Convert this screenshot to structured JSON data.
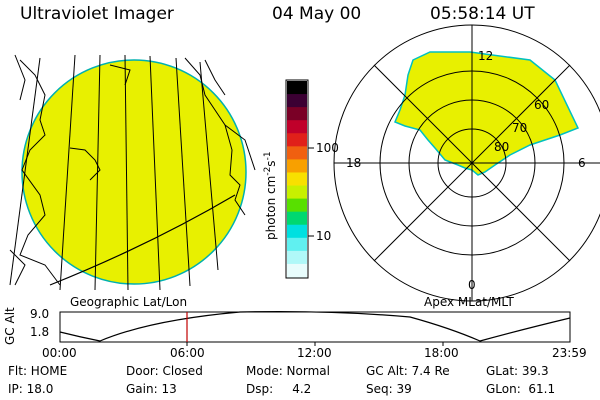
{
  "header": {
    "instrument": "Ultraviolet Imager",
    "date": "04 May 00",
    "time": "05:58:14 UT"
  },
  "colorbar": {
    "unit_label": "photon cm",
    "unit_sup1": "-2",
    "unit_mid": "s",
    "unit_sup2": "-1",
    "tick_100": "100",
    "tick_10": "10",
    "colors": [
      "#000000",
      "#3b0033",
      "#7a0026",
      "#c0002a",
      "#e0201a",
      "#f06010",
      "#f8a000",
      "#f8e000",
      "#c8f000",
      "#58e000",
      "#00d870",
      "#00e0e0",
      "#60f0f0",
      "#b0f8f8",
      "#e8fcfc"
    ]
  },
  "geo_panel": {
    "label": "Geographic Lat/Lon",
    "fill": "#e8f000"
  },
  "polar_panel": {
    "label": "Apex MLat/MLT",
    "mlat_labels": [
      "60",
      "70",
      "80"
    ],
    "mlt_labels": {
      "top": "12",
      "left": "18",
      "right": "6",
      "bottom": "0"
    }
  },
  "altitude_plot": {
    "ylabel": "GC Alt",
    "y_ticks": [
      "9.0",
      "1.8"
    ],
    "x_ticks": [
      "00:00",
      "06:00",
      "12:00",
      "18:00",
      "23:59"
    ],
    "marker_color": "#c00000"
  },
  "info": {
    "flt": "Flt: HOME",
    "door": "Door: Closed",
    "mode": "Mode: Normal",
    "gc_alt": "GC Alt: 7.4 Re",
    "glat": "GLat:  39.3",
    "ip": "IP: 18.0",
    "gain": "Gain: 13",
    "dsp": "Dsp:     4.2",
    "seq": "Seq: 39",
    "glon": "GLon:  61.1"
  }
}
